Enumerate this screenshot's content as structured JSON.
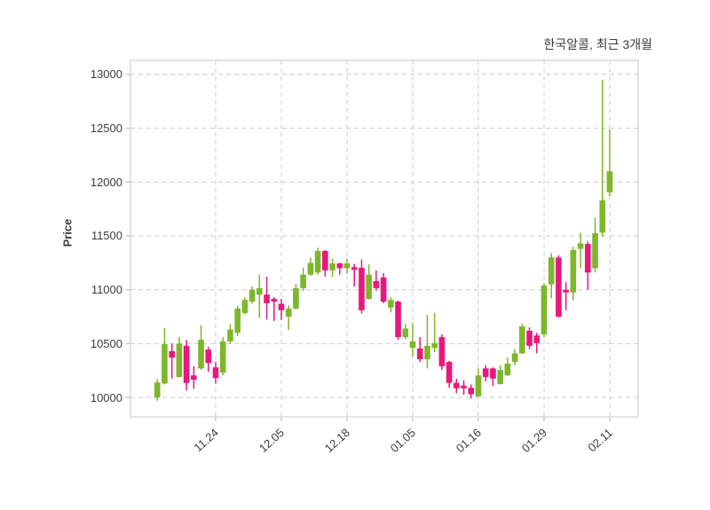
{
  "title": "한국알콜, 최근 3개월",
  "ylabel": "Price",
  "colors": {
    "up": "#7eb62c",
    "down": "#e8187c",
    "grid": "#cccccc",
    "frame": "#e3e3e3",
    "tick_text": "#3c3c3c",
    "background": "#ffffff"
  },
  "chart_data": {
    "type": "candlestick",
    "title": "한국알콜, 최근 3개월",
    "ylabel": "Price",
    "grid": "dashed both axes",
    "ylim": [
      9820,
      13130
    ],
    "yticks": [
      10000,
      10500,
      11000,
      11500,
      12000,
      12500,
      13000
    ],
    "ytick_labels": [
      "10000",
      "10500",
      "11000",
      "11500",
      "12000",
      "12500",
      "13000"
    ],
    "xtick_labels": [
      "11.24",
      "12.05",
      "12.18",
      "01.05",
      "01.16",
      "01.29",
      "02.11"
    ],
    "xtick_indices": [
      8,
      17,
      26,
      35,
      44,
      53,
      62
    ],
    "candles_format": "[open, high, low, close]",
    "candles": [
      [
        10000,
        10170,
        9970,
        10140
      ],
      [
        10130,
        10645,
        10120,
        10495
      ],
      [
        10430,
        10500,
        10175,
        10370
      ],
      [
        10190,
        10560,
        10185,
        10500
      ],
      [
        10480,
        10535,
        10065,
        10135
      ],
      [
        10205,
        10290,
        10080,
        10165
      ],
      [
        10270,
        10670,
        10255,
        10535
      ],
      [
        10445,
        10470,
        10240,
        10320
      ],
      [
        10280,
        10330,
        10130,
        10180
      ],
      [
        10230,
        10560,
        10205,
        10520
      ],
      [
        10520,
        10680,
        10500,
        10630
      ],
      [
        10600,
        10850,
        10570,
        10825
      ],
      [
        10785,
        10930,
        10770,
        10905
      ],
      [
        10890,
        11030,
        10870,
        11000
      ],
      [
        10955,
        11140,
        10740,
        11015
      ],
      [
        10955,
        11120,
        10725,
        10875
      ],
      [
        10915,
        10930,
        10710,
        10890
      ],
      [
        10870,
        10915,
        10720,
        10810
      ],
      [
        10750,
        10855,
        10625,
        10825
      ],
      [
        10825,
        11055,
        10820,
        11015
      ],
      [
        11015,
        11205,
        10990,
        11140
      ],
      [
        11140,
        11300,
        11130,
        11250
      ],
      [
        11160,
        11390,
        11140,
        11360
      ],
      [
        11360,
        11370,
        11120,
        11180
      ],
      [
        11180,
        11290,
        11120,
        11245
      ],
      [
        11245,
        11250,
        11140,
        11200
      ],
      [
        11200,
        11290,
        11150,
        11245
      ],
      [
        11210,
        11240,
        11030,
        11185
      ],
      [
        11205,
        11280,
        10780,
        10810
      ],
      [
        10915,
        11235,
        10910,
        11140
      ],
      [
        11080,
        11180,
        10990,
        11015
      ],
      [
        11115,
        11155,
        10875,
        10890
      ],
      [
        10835,
        10930,
        10790,
        10905
      ],
      [
        10890,
        10900,
        10535,
        10560
      ],
      [
        10560,
        10680,
        10540,
        10640
      ],
      [
        10460,
        10690,
        10380,
        10520
      ],
      [
        10455,
        10560,
        10330,
        10355
      ],
      [
        10355,
        10765,
        10270,
        10480
      ],
      [
        10460,
        10785,
        10420,
        10505
      ],
      [
        10560,
        10585,
        10255,
        10290
      ],
      [
        10330,
        10340,
        10090,
        10135
      ],
      [
        10135,
        10175,
        10040,
        10085
      ],
      [
        10110,
        10160,
        10025,
        10085
      ],
      [
        10090,
        10120,
        9990,
        10030
      ],
      [
        10010,
        10270,
        10005,
        10205
      ],
      [
        10270,
        10300,
        10150,
        10190
      ],
      [
        10270,
        10280,
        10105,
        10175
      ],
      [
        10125,
        10300,
        10120,
        10255
      ],
      [
        10205,
        10370,
        10200,
        10315
      ],
      [
        10330,
        10450,
        10300,
        10410
      ],
      [
        10410,
        10685,
        10405,
        10660
      ],
      [
        10620,
        10650,
        10450,
        10480
      ],
      [
        10575,
        10600,
        10410,
        10505
      ],
      [
        10585,
        11060,
        10560,
        11040
      ],
      [
        11050,
        11340,
        10920,
        11300
      ],
      [
        11300,
        11320,
        10740,
        10750
      ],
      [
        11000,
        11070,
        10810,
        10975
      ],
      [
        10975,
        11400,
        10900,
        11370
      ],
      [
        11380,
        11530,
        11200,
        11430
      ],
      [
        11425,
        11450,
        11000,
        11160
      ],
      [
        11200,
        11670,
        11160,
        11525
      ],
      [
        11530,
        12950,
        11490,
        11830
      ],
      [
        11905,
        12490,
        11870,
        12100
      ]
    ]
  }
}
